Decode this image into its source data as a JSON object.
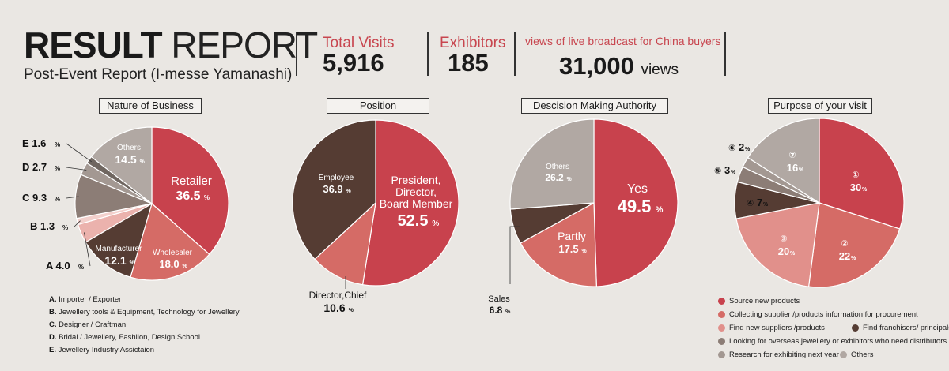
{
  "header": {
    "title_bold": "RESULT",
    "title_thin": " REPORT",
    "subtitle": "Post-Event Report (I-messe Yamanashi)"
  },
  "stats": [
    {
      "label": "Total Visits",
      "value": "5,916",
      "unit": ""
    },
    {
      "label": "Exhibitors",
      "value": "185",
      "unit": ""
    },
    {
      "label": "views of live broadcast for China buyers",
      "value": "31,000",
      "unit": "views"
    }
  ],
  "colors": {
    "red": "#c8424d",
    "salmon": "#d56b66",
    "pink": "#e1908b",
    "lightpink": "#ebb2ad",
    "brown": "#553c33",
    "taupe": "#8c7d76",
    "grey": "#b1a8a3",
    "lightgrey": "#cfc8c3",
    "darkgrey": "#6f6660"
  },
  "chart_data": [
    {
      "type": "pie",
      "title": "Nature of Business",
      "slices": [
        {
          "label": "Retailer",
          "value": 36.5,
          "text": "36.5",
          "unit": "%",
          "color": "#c8424d"
        },
        {
          "label": "Wholesaler",
          "value": 18.0,
          "text": "18.0",
          "unit": "%",
          "color": "#d56b66"
        },
        {
          "label": "Manufacturer",
          "value": 12.1,
          "text": "12.1",
          "unit": "%",
          "color": "#553c33"
        },
        {
          "label": "A",
          "value": 4.0,
          "text": "4.0",
          "unit": "%",
          "color": "#ebb2ad"
        },
        {
          "label": "B",
          "value": 1.3,
          "text": "1.3",
          "unit": "%",
          "color": "#f3d0cc"
        },
        {
          "label": "C",
          "value": 9.3,
          "text": "9.3",
          "unit": "%",
          "color": "#8c7d76"
        },
        {
          "label": "D",
          "value": 2.7,
          "text": "2.7",
          "unit": "%",
          "color": "#a39892"
        },
        {
          "label": "E",
          "value": 1.6,
          "text": "1.6",
          "unit": "%",
          "color": "#6f6660"
        },
        {
          "label": "Others",
          "value": 14.5,
          "text": "14.5",
          "unit": "%",
          "color": "#b1a8a3"
        }
      ]
    },
    {
      "type": "pie",
      "title": "Position",
      "slices": [
        {
          "label": "President, Director, Board Member",
          "value": 52.5,
          "text": "52.5",
          "unit": "%",
          "color": "#c8424d"
        },
        {
          "label": "Director,Chief",
          "value": 10.6,
          "text": "10.6",
          "unit": "%",
          "color": "#d56b66"
        },
        {
          "label": "Employee",
          "value": 36.9,
          "text": "36.9",
          "unit": "%",
          "color": "#553c33"
        }
      ]
    },
    {
      "type": "pie",
      "title": "Descision Making Authority",
      "slices": [
        {
          "label": "Yes",
          "value": 49.5,
          "text": "49.5",
          "unit": "%",
          "color": "#c8424d"
        },
        {
          "label": "Partly",
          "value": 17.5,
          "text": "17.5",
          "unit": "%",
          "color": "#d56b66"
        },
        {
          "label": "Sales",
          "value": 6.8,
          "text": "6.8",
          "unit": "%",
          "color": "#553c33"
        },
        {
          "label": "Others",
          "value": 26.2,
          "text": "26.2",
          "unit": "%",
          "color": "#b1a8a3"
        }
      ]
    },
    {
      "type": "pie",
      "title": "Purpose of your visit",
      "slices": [
        {
          "label": "1",
          "value": 30,
          "text": "30",
          "unit": "%",
          "color": "#c8424d"
        },
        {
          "label": "2",
          "value": 22,
          "text": "22",
          "unit": "%",
          "color": "#d56b66"
        },
        {
          "label": "3",
          "value": 20,
          "text": "20",
          "unit": "%",
          "color": "#e1908b"
        },
        {
          "label": "4",
          "value": 7,
          "text": "7",
          "unit": "%",
          "color": "#553c33"
        },
        {
          "label": "5",
          "value": 3,
          "text": "3",
          "unit": "%",
          "color": "#8c7d76"
        },
        {
          "label": "6",
          "value": 2,
          "text": "2",
          "unit": "%",
          "color": "#a39892"
        },
        {
          "label": "7",
          "value": 16,
          "text": "16",
          "unit": "%",
          "color": "#b1a8a3"
        }
      ]
    }
  ],
  "legend_business": [
    {
      "key": "A.",
      "text": "Importer / Exporter"
    },
    {
      "key": "B.",
      "text": "Jewellery tools & Equipment, Technology for Jewellery"
    },
    {
      "key": "C.",
      "text": "Designer / Craftman"
    },
    {
      "key": "D.",
      "text": "Bridal / Jewellery, Fashiion, Design School"
    },
    {
      "key": "E.",
      "text": "Jewellery Industry Assictaion"
    }
  ],
  "legend_purpose": [
    {
      "text": "Source new products",
      "color": "#c8424d"
    },
    {
      "text": "Collecting supplier /products information for procurement",
      "color": "#d56b66"
    },
    {
      "text": "Find new suppliers /products",
      "color": "#e1908b"
    },
    {
      "text": "Find franchisers/ principals",
      "color": "#553c33"
    },
    {
      "text": "Looking for overseas jewellery or exhibitors who need distributors",
      "color": "#8c7d76"
    },
    {
      "text": "Research for exhibiting next year",
      "color": "#a39892"
    },
    {
      "text": "Others",
      "color": "#b1a8a3"
    }
  ]
}
